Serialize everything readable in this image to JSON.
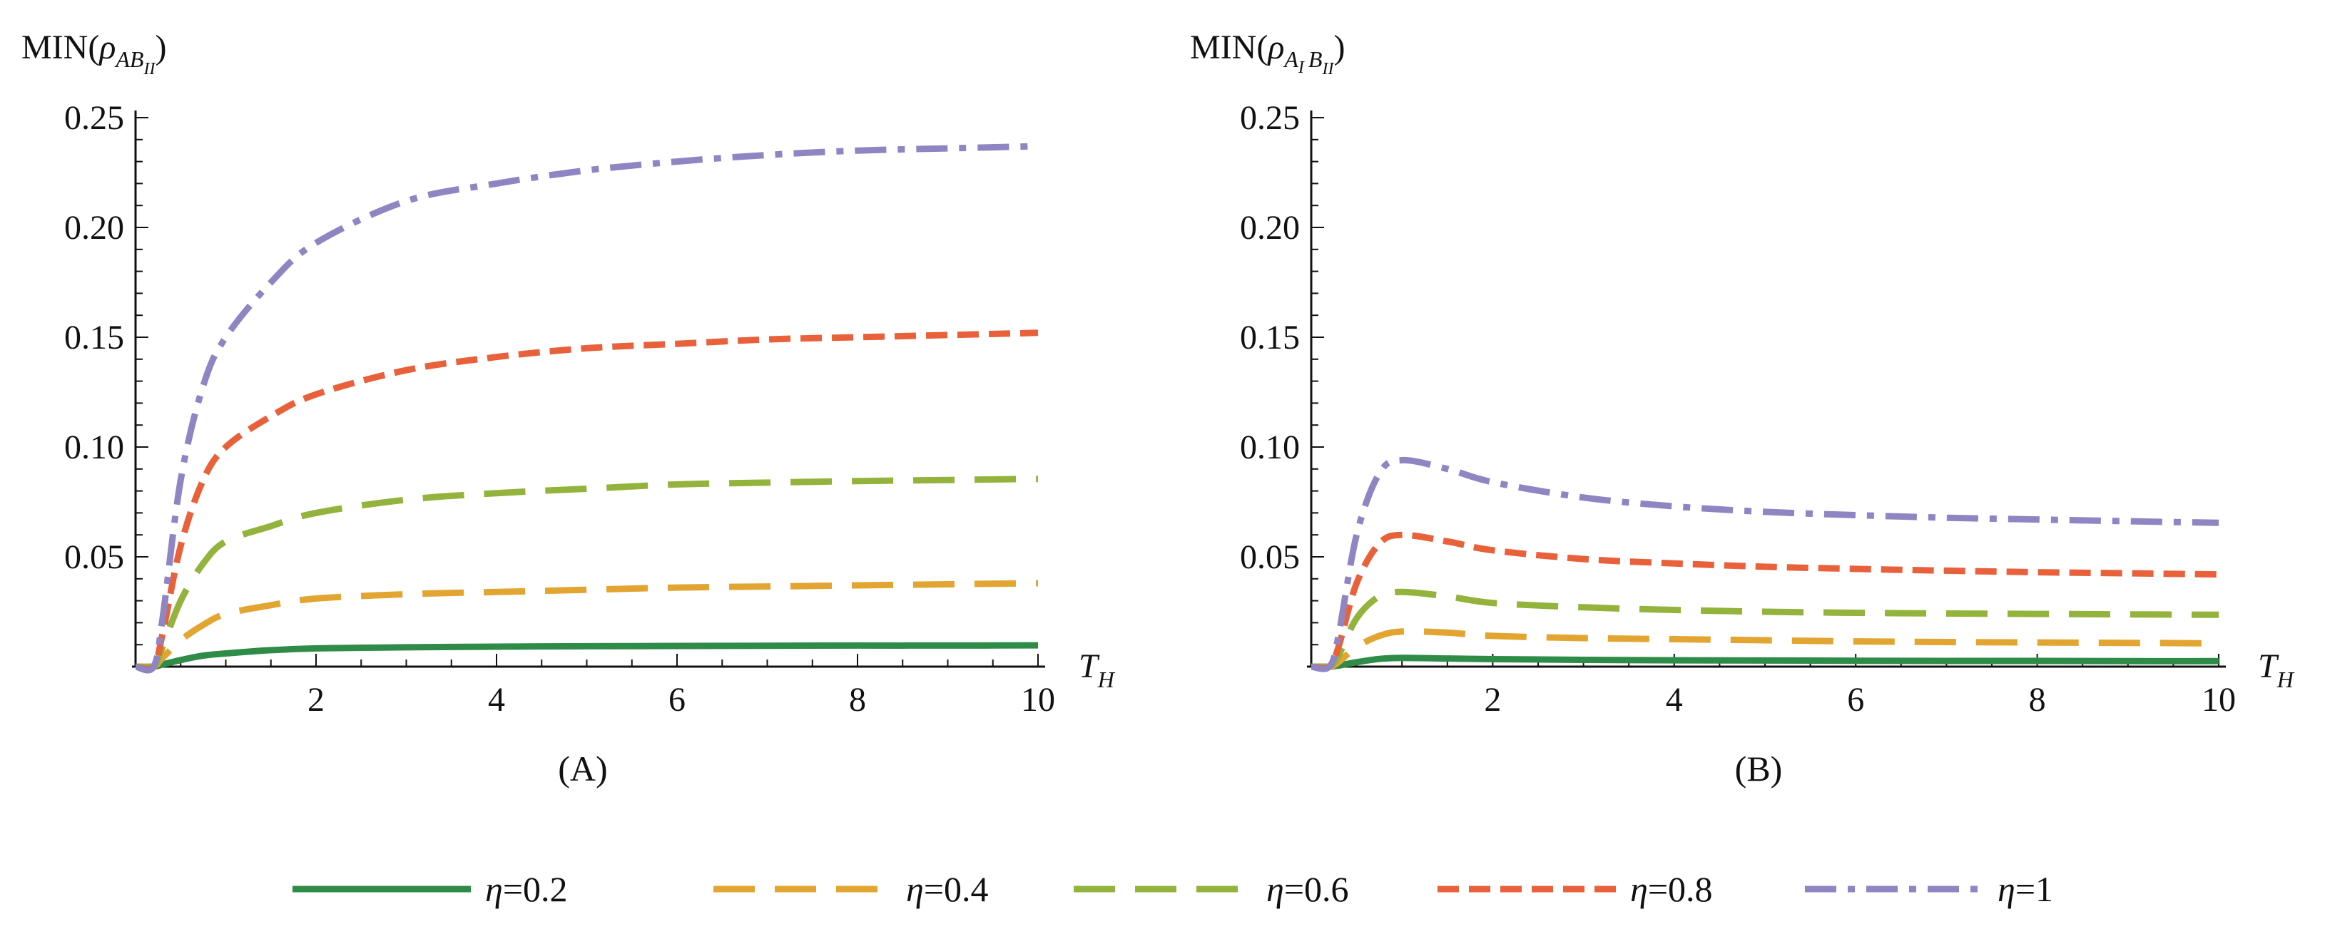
{
  "chart_data": [
    {
      "type": "line",
      "panel_label": "(A)",
      "ylabel_base": "MIN(",
      "ylabel_rho": "ρ",
      "ylabel_sub1": "AB",
      "ylabel_sub1b": "",
      "ylabel_sub2": "II",
      "ylabel_close": ")",
      "xlabel_main": "T",
      "xlabel_sub": "H",
      "xlim": [
        0,
        10
      ],
      "ylim": [
        0,
        0.25
      ],
      "xticks": [
        2,
        4,
        6,
        8,
        10
      ],
      "xtick_labels": [
        "2",
        "4",
        "6",
        "8",
        "10"
      ],
      "yticks": [
        0.05,
        0.1,
        0.15,
        0.2,
        0.25
      ],
      "ytick_labels": [
        "0.05",
        "0.10",
        "0.15",
        "0.20",
        "0.25"
      ],
      "x": [
        0,
        0.2,
        0.3,
        0.5,
        0.75,
        1,
        1.5,
        2,
        3,
        4,
        5,
        6,
        7,
        8,
        9,
        10
      ],
      "series": [
        {
          "name": "η=0.2",
          "values": [
            0,
            0,
            0.001,
            0.003,
            0.005,
            0.006,
            0.0075,
            0.0083,
            0.0088,
            0.0091,
            0.0093,
            0.0094,
            0.0095,
            0.0096,
            0.0096,
            0.0097
          ]
        },
        {
          "name": "η=0.4",
          "values": [
            0,
            0,
            0.004,
            0.012,
            0.019,
            0.024,
            0.028,
            0.031,
            0.033,
            0.034,
            0.035,
            0.036,
            0.0365,
            0.037,
            0.0375,
            0.038
          ]
        },
        {
          "name": "η=0.6",
          "values": [
            0,
            0,
            0.009,
            0.03,
            0.047,
            0.057,
            0.064,
            0.07,
            0.076,
            0.079,
            0.081,
            0.083,
            0.0838,
            0.0845,
            0.085,
            0.0855
          ]
        },
        {
          "name": "η=0.8",
          "values": [
            0,
            0,
            0.015,
            0.055,
            0.085,
            0.1,
            0.114,
            0.124,
            0.135,
            0.141,
            0.145,
            0.147,
            0.149,
            0.15,
            0.151,
            0.152
          ]
        },
        {
          "name": "η=1",
          "values": [
            0,
            0,
            0.022,
            0.085,
            0.128,
            0.15,
            0.175,
            0.193,
            0.212,
            0.22,
            0.226,
            0.23,
            0.233,
            0.235,
            0.236,
            0.237
          ]
        }
      ]
    },
    {
      "type": "line",
      "panel_label": "(B)",
      "ylabel_base": "MIN(",
      "ylabel_rho": "ρ",
      "ylabel_sub1": "A",
      "ylabel_sub1b": "I",
      "ylabel_sub2": "B",
      "ylabel_sub2b": "II",
      "ylabel_close": ")",
      "xlabel_main": "T",
      "xlabel_sub": "H",
      "xlim": [
        0,
        10
      ],
      "ylim": [
        0,
        0.25
      ],
      "xticks": [
        2,
        4,
        6,
        8,
        10
      ],
      "xtick_labels": [
        "2",
        "4",
        "6",
        "8",
        "10"
      ],
      "yticks": [
        0.05,
        0.1,
        0.15,
        0.2,
        0.25
      ],
      "ytick_labels": [
        "0.05",
        "0.10",
        "0.15",
        "0.20",
        "0.25"
      ],
      "x": [
        0,
        0.2,
        0.3,
        0.5,
        0.75,
        1,
        1.5,
        2,
        3,
        4,
        5,
        6,
        7,
        8,
        9,
        10
      ],
      "series": [
        {
          "name": "η=0.2",
          "values": [
            0,
            0,
            0.0005,
            0.002,
            0.0035,
            0.004,
            0.0037,
            0.0034,
            0.0031,
            0.0029,
            0.0028,
            0.0027,
            0.0026,
            0.0026,
            0.0025,
            0.0025
          ]
        },
        {
          "name": "η=0.4",
          "values": [
            0,
            0,
            0.002,
            0.009,
            0.014,
            0.016,
            0.0155,
            0.014,
            0.013,
            0.0125,
            0.012,
            0.0115,
            0.0112,
            0.011,
            0.0108,
            0.0106
          ]
        },
        {
          "name": "η=0.6",
          "values": [
            0,
            0,
            0.005,
            0.022,
            0.032,
            0.034,
            0.032,
            0.029,
            0.027,
            0.0258,
            0.025,
            0.0245,
            0.0242,
            0.024,
            0.0238,
            0.0236
          ]
        },
        {
          "name": "η=0.8",
          "values": [
            0,
            0,
            0.009,
            0.038,
            0.056,
            0.06,
            0.057,
            0.053,
            0.049,
            0.047,
            0.0455,
            0.0445,
            0.0437,
            0.043,
            0.0425,
            0.042
          ]
        },
        {
          "name": "η=1",
          "values": [
            0,
            0,
            0.014,
            0.06,
            0.088,
            0.094,
            0.09,
            0.084,
            0.077,
            0.073,
            0.0705,
            0.069,
            0.0678,
            0.067,
            0.0662,
            0.0655
          ]
        }
      ]
    }
  ],
  "legend": {
    "entries": [
      {
        "prefix": "η",
        "label": "=0.2",
        "color": "#2e8b48",
        "dash": "solid"
      },
      {
        "prefix": "η",
        "label": "=0.4",
        "color": "#e3a531",
        "dash": "long"
      },
      {
        "prefix": "η",
        "label": "=0.6",
        "color": "#93b33d",
        "dash": "long"
      },
      {
        "prefix": "η",
        "label": "=0.8",
        "color": "#e8613a",
        "dash": "medium"
      },
      {
        "prefix": "η",
        "label": "=1",
        "color": "#8f85c2",
        "dash": "dashdot"
      }
    ]
  }
}
